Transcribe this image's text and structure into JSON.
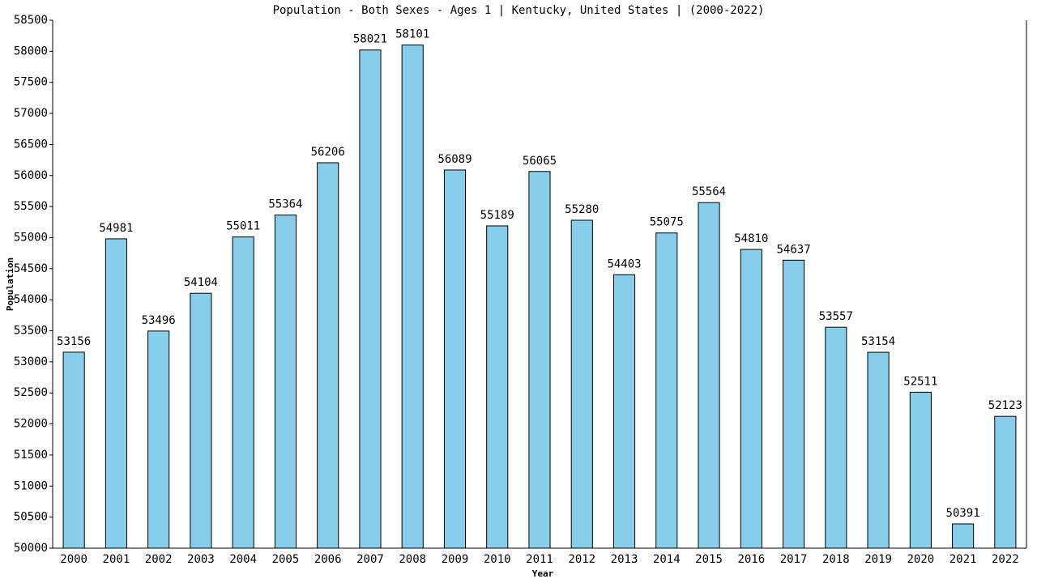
{
  "chart_data": {
    "type": "bar",
    "title": "Population - Both Sexes - Ages 1 | Kentucky, United States |  (2000-2022)",
    "x_label": "Year",
    "y_label": "Population",
    "categories": [
      "2000",
      "2001",
      "2002",
      "2003",
      "2004",
      "2005",
      "2006",
      "2007",
      "2008",
      "2009",
      "2010",
      "2011",
      "2012",
      "2013",
      "2014",
      "2015",
      "2016",
      "2017",
      "2018",
      "2019",
      "2020",
      "2021",
      "2022"
    ],
    "values": [
      53156,
      54981,
      53496,
      54104,
      55011,
      55364,
      56206,
      58021,
      58101,
      56089,
      55189,
      56065,
      55280,
      54403,
      55075,
      55564,
      54810,
      54637,
      53557,
      53154,
      52511,
      50391,
      52123
    ],
    "color": "#87ceeb",
    "ylim": [
      50000,
      58500
    ],
    "yticks": [
      50000,
      50500,
      51000,
      51500,
      52000,
      52500,
      53000,
      53500,
      54000,
      54500,
      55000,
      55500,
      56000,
      56500,
      57000,
      57500,
      58000,
      58500
    ],
    "grid": false
  }
}
